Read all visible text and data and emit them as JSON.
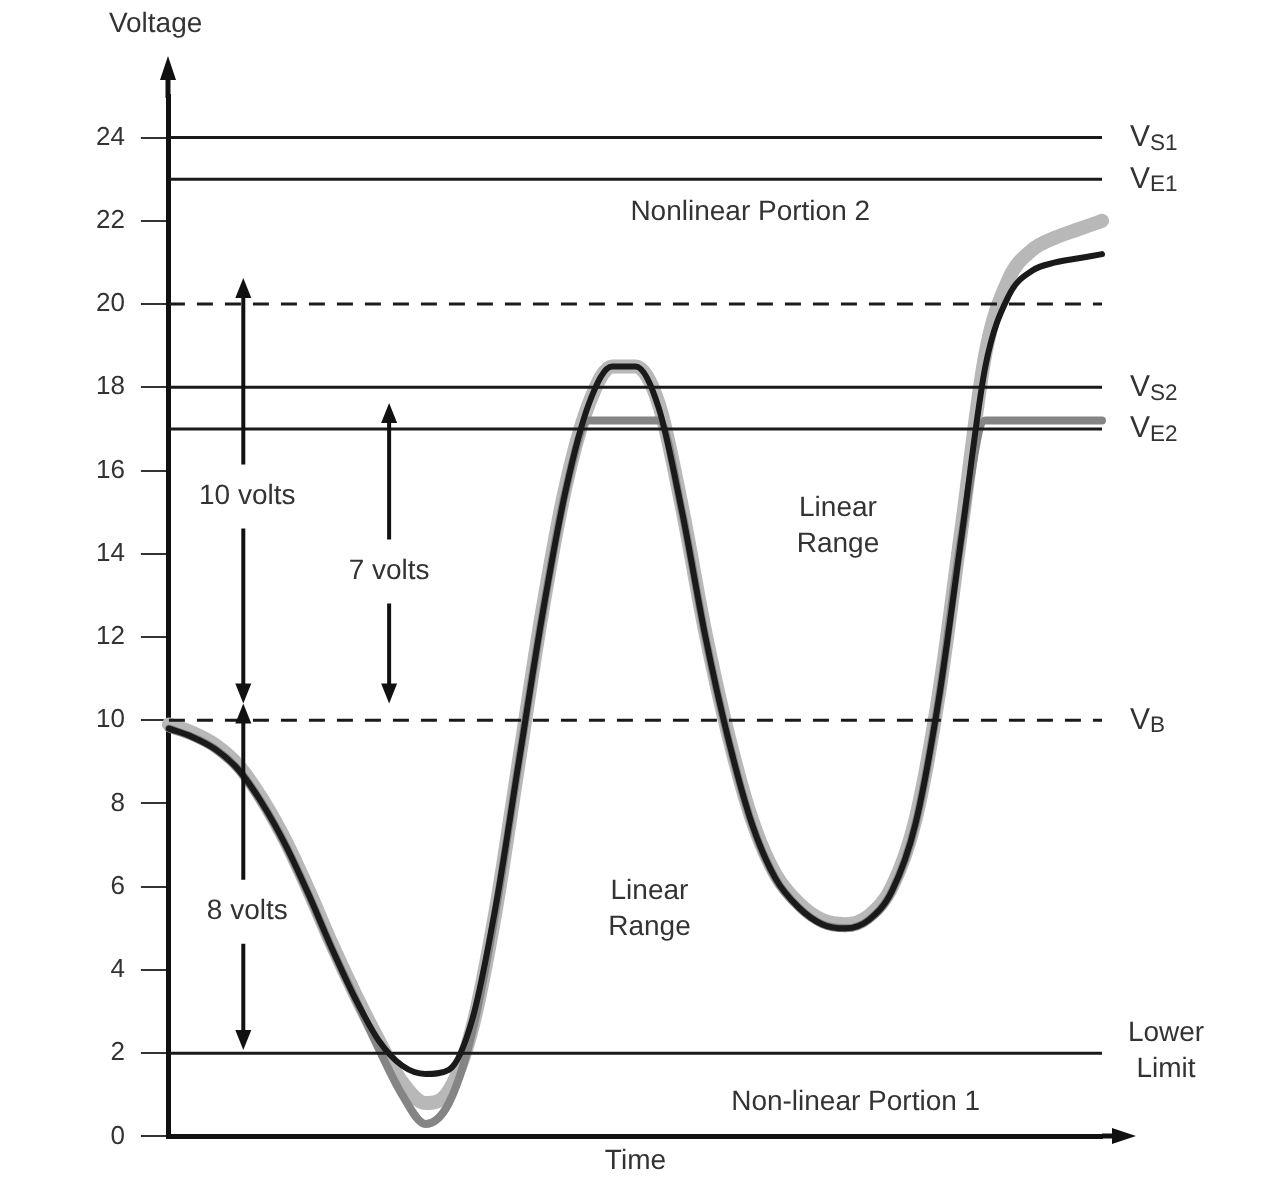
{
  "chart_data": {
    "type": "line",
    "xlabel": "Time",
    "ylabel": "Voltage",
    "tick_labels": "y",
    "marker": "none",
    "line_style": "solid",
    "categories": [
      null,
      null,
      null,
      null,
      null,
      null,
      null,
      null,
      null,
      null,
      null,
      null,
      null,
      null,
      null,
      null,
      null,
      null,
      null,
      null,
      null,
      null,
      null,
      null,
      null,
      null,
      null,
      null,
      null,
      null,
      null,
      null,
      null,
      null,
      null,
      null,
      null,
      null,
      null,
      null,
      null
    ],
    "ylim": [
      0,
      25
    ],
    "yticks": [
      0,
      2,
      4,
      6,
      8,
      10,
      12,
      14,
      16,
      18,
      20,
      22,
      24
    ],
    "series": [
      {
        "color": "#b8b8b8",
        "values": [
          9.9,
          9.7,
          9.4,
          8.9,
          8.1,
          7.1,
          5.9,
          4.6,
          3.4,
          2.3,
          1.3,
          0.8,
          1.1,
          2.6,
          5.4,
          9.0,
          12.6,
          15.6,
          17.6,
          18.5,
          18.5,
          17.6,
          15.1,
          12.1,
          9.6,
          7.6,
          6.3,
          5.6,
          5.2,
          5.1,
          5.3,
          6.0,
          7.6,
          10.6,
          14.7,
          18.8,
          20.6,
          21.3,
          21.6,
          21.8,
          22.0
        ]
      },
      {
        "color": "#858585",
        "values": [
          9.8,
          9.6,
          9.3,
          8.8,
          8.0,
          7.0,
          5.8,
          4.5,
          3.3,
          2.1,
          1.0,
          0.3,
          0.8,
          2.5,
          5.4,
          9.0,
          12.5,
          15.5,
          17.2,
          17.2,
          17.2,
          17.2,
          15.0,
          12.0,
          9.5,
          7.5,
          6.2,
          5.5,
          5.1,
          5.0,
          5.2,
          5.9,
          7.5,
          10.5,
          14.5,
          17.2,
          17.2,
          17.2,
          17.2,
          17.2,
          17.2
        ]
      },
      {
        "color": "#1a1a1a",
        "values": [
          9.8,
          9.6,
          9.3,
          8.8,
          8.0,
          7.0,
          5.8,
          4.5,
          3.3,
          2.3,
          1.7,
          1.5,
          1.6,
          2.8,
          5.5,
          9.0,
          12.5,
          15.5,
          17.6,
          18.5,
          18.5,
          17.5,
          15.0,
          12.0,
          9.5,
          7.5,
          6.2,
          5.5,
          5.1,
          5.0,
          5.2,
          5.9,
          7.5,
          10.5,
          14.5,
          18.5,
          20.2,
          20.8,
          21.0,
          21.1,
          21.2
        ]
      }
    ],
    "ref_lines": [
      {
        "axis": "y",
        "value": 24,
        "label": "V$_{S1}$",
        "color": "#1a1a1a",
        "line_style": "solid"
      },
      {
        "axis": "y",
        "value": 23,
        "label": "V$_{E1}$",
        "color": "#1a1a1a",
        "line_style": "solid"
      },
      {
        "axis": "y",
        "value": 20,
        "color": "#1a1a1a",
        "line_style": "dashed"
      },
      {
        "axis": "y",
        "value": 18,
        "label": "V$_{S2}$",
        "color": "#1a1a1a",
        "line_style": "solid"
      },
      {
        "axis": "y",
        "value": 17,
        "label": "V$_{E2}$",
        "color": "#1a1a1a",
        "line_style": "solid"
      },
      {
        "axis": "y",
        "value": 10,
        "label": "V$_{B}$",
        "color": "#1a1a1a",
        "line_style": "dashed"
      },
      {
        "axis": "y",
        "value": 2,
        "label": "Lower Limit",
        "color": "#1a1a1a",
        "line_style": "solid"
      }
    ],
    "annotations": [
      "Nonlinear Portion 2",
      "Linear Range",
      "Linear Range",
      "Non-linear Portion 1",
      "10 volts",
      "7 volts",
      "8 volts"
    ]
  }
}
